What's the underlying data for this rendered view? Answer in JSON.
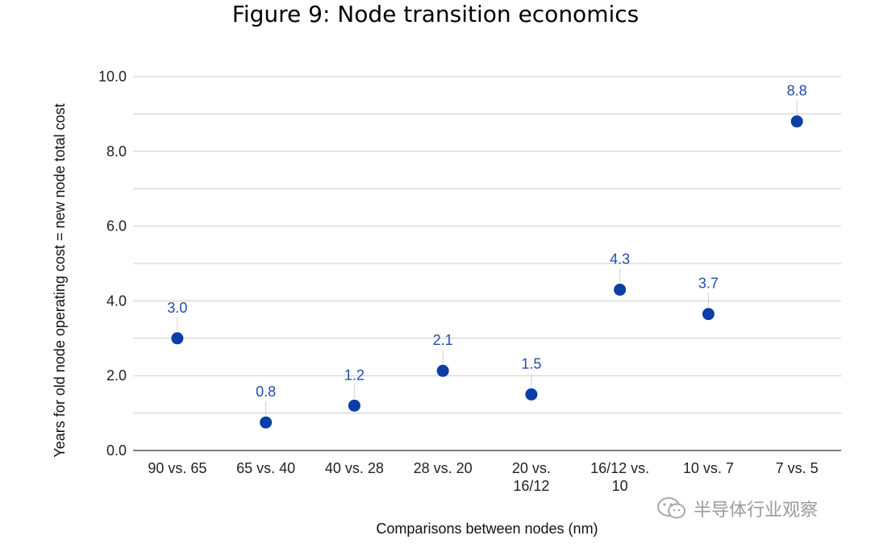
{
  "chart_data": {
    "type": "scatter",
    "title": "Figure 9: Node transition economics",
    "xlabel": "Comparisons between nodes (nm)",
    "ylabel": "Years for old node operating cost = new node total cost",
    "ylim": [
      0,
      10
    ],
    "yticks": [
      "0.0",
      "2.0",
      "4.0",
      "6.0",
      "8.0",
      "10.0"
    ],
    "grid": true,
    "categories": [
      [
        "90 vs. 65"
      ],
      [
        "65 vs. 40"
      ],
      [
        "40 vs. 28"
      ],
      [
        "28 vs. 20"
      ],
      [
        "20 vs.",
        "16/12"
      ],
      [
        "16/12 vs.",
        "10"
      ],
      [
        "10 vs. 7"
      ],
      [
        "7 vs. 5"
      ]
    ],
    "values": [
      3.0,
      0.75,
      1.2,
      2.13,
      1.5,
      4.3,
      3.65,
      8.8
    ],
    "data_labels": [
      "3.0",
      "0.8",
      "1.2",
      "2.1",
      "1.5",
      "4.3",
      "3.7",
      "8.8"
    ],
    "point_color": "#0b3ea6",
    "label_color": "#1e4fae"
  },
  "watermark": {
    "text": "半导体行业观察",
    "icon": "wechat-icon"
  }
}
